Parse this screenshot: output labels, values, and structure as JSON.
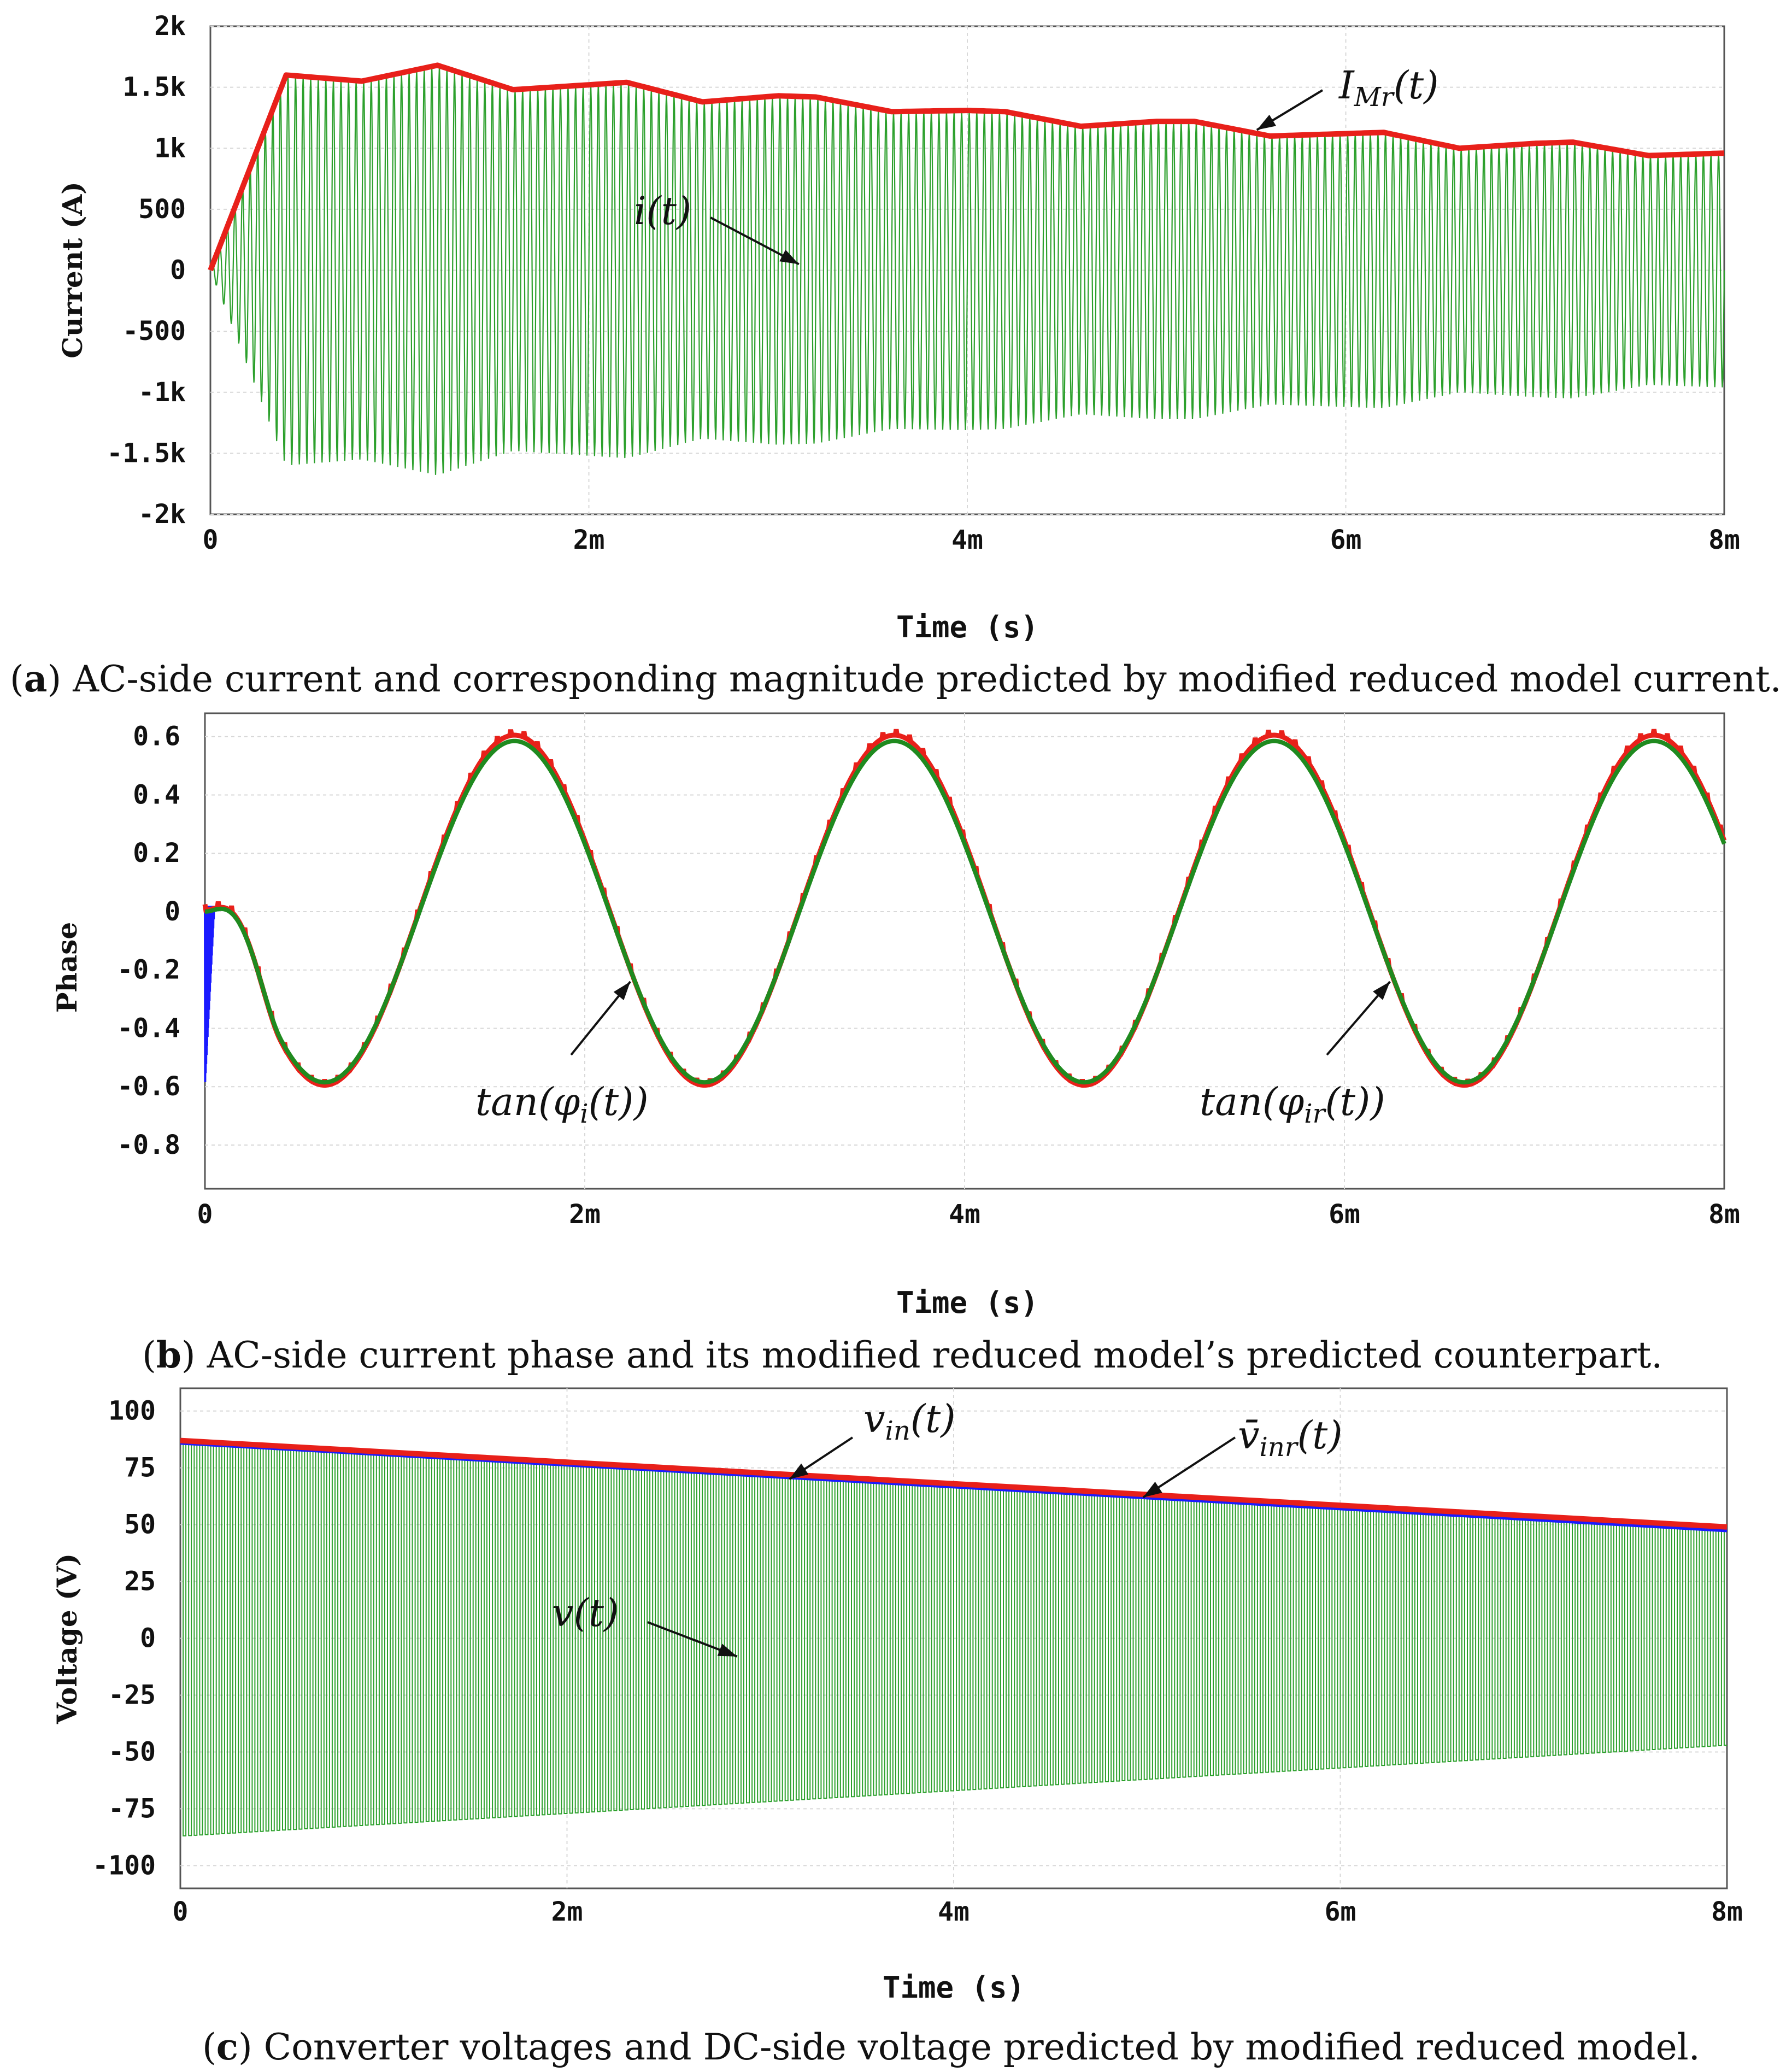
{
  "chart_data": [
    {
      "id": "a",
      "type": "line",
      "ylabel": "Current (A)",
      "xlabel": "Time (s)",
      "xlim": [
        0,
        0.008
      ],
      "ylim": [
        -2000,
        2000
      ],
      "xticks": [
        {
          "v": 0,
          "label": "0"
        },
        {
          "v": 0.002,
          "label": "2m"
        },
        {
          "v": 0.004,
          "label": "4m"
        },
        {
          "v": 0.006,
          "label": "6m"
        },
        {
          "v": 0.008,
          "label": "8m"
        }
      ],
      "yticks": [
        {
          "v": 2000,
          "label": "2k"
        },
        {
          "v": 1500,
          "label": "1.5k"
        },
        {
          "v": 1000,
          "label": "1k"
        },
        {
          "v": 500,
          "label": "500"
        },
        {
          "v": 0,
          "label": "0"
        },
        {
          "v": -500,
          "label": "-500"
        },
        {
          "v": -1000,
          "label": "-1k"
        },
        {
          "v": -1500,
          "label": "-1.5k"
        },
        {
          "v": -2000,
          "label": "-2k"
        }
      ],
      "series": [
        {
          "name": "i(t)",
          "color": "#2ca02c",
          "kind": "oscillation",
          "envelope_t": [
            0,
            0.0004,
            0.0008,
            0.0012,
            0.0016,
            0.002,
            0.0022,
            0.0026,
            0.003,
            0.0032,
            0.0036,
            0.004,
            0.0042,
            0.0046,
            0.005,
            0.0052,
            0.0056,
            0.006,
            0.0062,
            0.0066,
            0.007,
            0.0072,
            0.0076,
            0.008
          ],
          "envelope_amp": [
            0,
            1600,
            1550,
            1680,
            1480,
            1520,
            1540,
            1380,
            1430,
            1420,
            1300,
            1310,
            1300,
            1180,
            1220,
            1220,
            1100,
            1120,
            1130,
            1000,
            1040,
            1050,
            940,
            960
          ]
        },
        {
          "name": "I_Mr(t)",
          "color": "#e8201a",
          "kind": "envelope",
          "t": [
            0,
            0.0004,
            0.0008,
            0.0012,
            0.0016,
            0.002,
            0.0022,
            0.0026,
            0.003,
            0.0032,
            0.0036,
            0.004,
            0.0042,
            0.0046,
            0.005,
            0.0052,
            0.0056,
            0.006,
            0.0062,
            0.0066,
            0.007,
            0.0072,
            0.0076,
            0.008
          ],
          "values": [
            0,
            1600,
            1550,
            1680,
            1480,
            1520,
            1540,
            1380,
            1430,
            1420,
            1300,
            1310,
            1300,
            1180,
            1220,
            1220,
            1100,
            1120,
            1130,
            1000,
            1040,
            1050,
            940,
            960
          ]
        }
      ],
      "annotations": [
        {
          "label_main": "I",
          "label_sub": "Mr",
          "label_tail": "(t)",
          "target_t": 0.00553,
          "target_y": 1150
        },
        {
          "label_main": "i(t)",
          "label_sub": "",
          "label_tail": "",
          "target_t": 0.00311,
          "target_y": 50
        }
      ],
      "caption": {
        "tag": "a",
        "text": ") AC-side current and corresponding magnitude predicted by modified reduced model current."
      }
    },
    {
      "id": "b",
      "type": "line",
      "ylabel": "Phase",
      "xlabel": "Time (s)",
      "xlim": [
        0,
        0.008
      ],
      "ylim": [
        -0.95,
        0.68
      ],
      "xticks": [
        {
          "v": 0,
          "label": "0"
        },
        {
          "v": 0.002,
          "label": "2m"
        },
        {
          "v": 0.004,
          "label": "4m"
        },
        {
          "v": 0.006,
          "label": "6m"
        },
        {
          "v": 0.008,
          "label": "8m"
        }
      ],
      "yticks": [
        {
          "v": 0.6,
          "label": "0.6"
        },
        {
          "v": 0.4,
          "label": "0.4"
        },
        {
          "v": 0.2,
          "label": "0.2"
        },
        {
          "v": 0,
          "label": "0"
        },
        {
          "v": -0.2,
          "label": "-0.2"
        },
        {
          "v": -0.4,
          "label": "-0.4"
        },
        {
          "v": -0.6,
          "label": "-0.6"
        },
        {
          "v": -0.8,
          "label": "-0.8"
        }
      ],
      "series": [
        {
          "name": "tan(φ_i(t))",
          "color": "#e8201a",
          "amplitude": 0.6,
          "period": 0.002,
          "center_t": 0.00163,
          "offset": 0.005
        },
        {
          "name": "tan(φ_ir(t))",
          "color": "#1f8a1f",
          "amplitude": 0.585,
          "period": 0.002,
          "center_t": 0.00163,
          "offset": 0
        },
        {
          "name": "transient",
          "color": "#1a1aff",
          "t": [
            0,
            5e-05
          ],
          "min": -0.6,
          "max": 0.02
        }
      ],
      "annotations": [
        {
          "label_main": "tan(",
          "label_greek": "φ",
          "label_sub": "i",
          "label_tail": "(t))",
          "target_t": 0.00224,
          "target_y": -0.24
        },
        {
          "label_main": "tan(",
          "label_greek": "φ",
          "label_sub": "ir",
          "label_tail": "(t))",
          "target_t": 0.00624,
          "target_y": -0.24
        }
      ],
      "caption": {
        "tag": "b",
        "text": ") AC-side current phase and its modified reduced model’s predicted counterpart."
      }
    },
    {
      "id": "c",
      "type": "line",
      "ylabel": "Voltage (V)",
      "xlabel": "Time (s)",
      "xlim": [
        0,
        0.008
      ],
      "ylim": [
        -110,
        110
      ],
      "xticks": [
        {
          "v": 0,
          "label": "0"
        },
        {
          "v": 0.002,
          "label": "2m"
        },
        {
          "v": 0.004,
          "label": "4m"
        },
        {
          "v": 0.006,
          "label": "6m"
        },
        {
          "v": 0.008,
          "label": "8m"
        }
      ],
      "yticks": [
        {
          "v": 100,
          "label": "100"
        },
        {
          "v": 75,
          "label": "75"
        },
        {
          "v": 50,
          "label": "50"
        },
        {
          "v": 25,
          "label": "25"
        },
        {
          "v": 0,
          "label": "0"
        },
        {
          "v": -25,
          "label": "-25"
        },
        {
          "v": -50,
          "label": "-50"
        },
        {
          "v": -75,
          "label": "-75"
        },
        {
          "v": -100,
          "label": "-100"
        }
      ],
      "series": [
        {
          "name": "v(t)",
          "color": "#2ca02c",
          "kind": "square",
          "start": 87,
          "end": 47
        },
        {
          "name": "v_in(t)",
          "color": "#e8201a",
          "kind": "line",
          "start": 87,
          "end": 49
        },
        {
          "name": "v̄_inr(t)",
          "color": "#1a1aff",
          "kind": "line",
          "start": 86,
          "end": 47.5
        }
      ],
      "annotations": [
        {
          "label_main": "v",
          "label_sub": "in",
          "label_tail": "(t)",
          "target_t": 0.00315,
          "target_y": 70
        },
        {
          "label_main": "v̄",
          "label_sub": "inr",
          "label_tail": "(t)",
          "target_t": 0.00498,
          "target_y": 62
        },
        {
          "label_main": "v(t)",
          "label_sub": "",
          "label_tail": "",
          "target_t": 0.00288,
          "target_y": -8
        }
      ],
      "caption": {
        "tag": "c",
        "text": ") Converter voltages and DC-side voltage predicted by modified reduced model."
      }
    }
  ]
}
